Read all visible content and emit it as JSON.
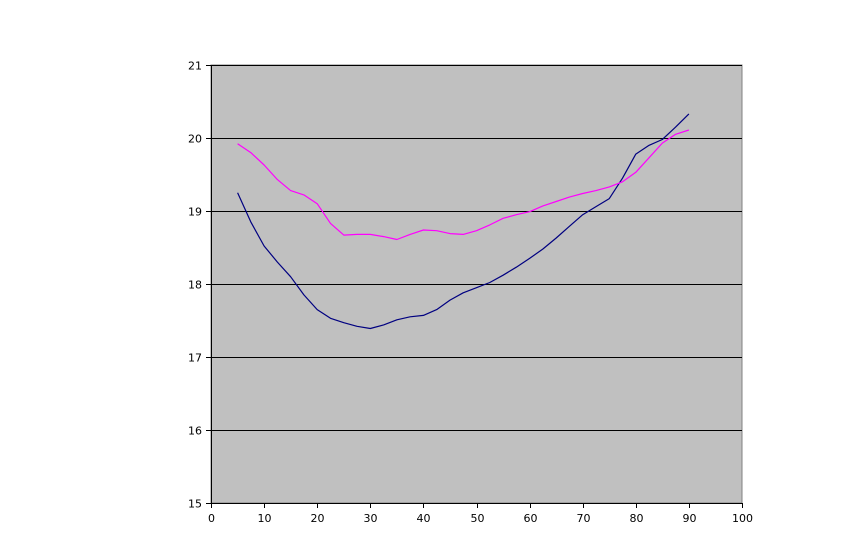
{
  "chart_data": {
    "type": "line",
    "title": "",
    "xlabel": "",
    "ylabel": "",
    "xlim": [
      0,
      100
    ],
    "ylim": [
      15,
      21
    ],
    "xticks": [
      0,
      10,
      20,
      30,
      40,
      50,
      60,
      70,
      80,
      90,
      100
    ],
    "yticks": [
      15,
      16,
      17,
      18,
      19,
      20,
      21
    ],
    "grid": {
      "horizontal": true,
      "vertical": false
    },
    "legend": "none",
    "plot_background": "#c0c0c0",
    "series": [
      {
        "color": "#000080",
        "x": [
          5,
          7.5,
          10,
          12.5,
          15,
          17.5,
          20,
          22.5,
          25,
          27.5,
          30,
          32.5,
          35,
          37.5,
          40,
          42.5,
          45,
          47.5,
          50,
          52.5,
          55,
          57.5,
          60,
          62.5,
          65,
          67.5,
          70,
          72.5,
          75,
          77.5,
          80,
          82.5,
          85,
          87.5,
          90
        ],
        "values": [
          19.25,
          18.85,
          18.52,
          18.3,
          18.1,
          17.85,
          17.65,
          17.53,
          17.47,
          17.42,
          17.39,
          17.44,
          17.51,
          17.55,
          17.57,
          17.65,
          17.78,
          17.88,
          17.95,
          18.02,
          18.12,
          18.23,
          18.35,
          18.48,
          18.63,
          18.79,
          18.95,
          19.06,
          19.17,
          19.45,
          19.78,
          19.9,
          19.98,
          20.15,
          20.33
        ]
      },
      {
        "color": "#ff00ff",
        "x": [
          5,
          7.5,
          10,
          12.5,
          15,
          17.5,
          20,
          22.5,
          25,
          27.5,
          30,
          32.5,
          35,
          37.5,
          40,
          42.5,
          45,
          47.5,
          50,
          52.5,
          55,
          57.5,
          60,
          62.5,
          65,
          67.5,
          70,
          72.5,
          75,
          77.5,
          80,
          82.5,
          85,
          87.5,
          90
        ],
        "values": [
          19.92,
          19.8,
          19.63,
          19.43,
          19.28,
          19.22,
          19.1,
          18.83,
          18.67,
          18.68,
          18.68,
          18.65,
          18.61,
          18.68,
          18.74,
          18.73,
          18.69,
          18.68,
          18.73,
          18.81,
          18.9,
          18.95,
          18.99,
          19.07,
          19.13,
          19.19,
          19.24,
          19.28,
          19.33,
          19.4,
          19.53,
          19.73,
          19.93,
          20.05,
          20.11
        ]
      }
    ]
  }
}
